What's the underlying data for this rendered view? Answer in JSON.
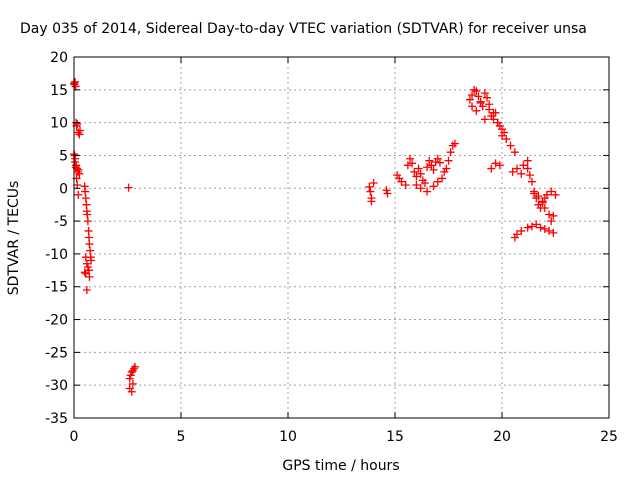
{
  "chart_data": {
    "type": "scatter",
    "title": "Day 035 of 2014, Sidereal Day-to-day VTEC variation (SDTVAR) for receiver unsa",
    "xlabel": "GPS time / hours",
    "ylabel": "SDTVAR / TECUs",
    "xlim": [
      0,
      25
    ],
    "ylim": [
      -35,
      20
    ],
    "xticks": [
      0,
      5,
      10,
      15,
      20,
      25
    ],
    "yticks": [
      20,
      15,
      10,
      5,
      0,
      -5,
      -10,
      -15,
      -20,
      -25,
      -30,
      -35
    ],
    "grid": true,
    "marker": "+",
    "colors": {
      "points": "#ff0000",
      "axes": "#000000",
      "grid": "#a0a0a0"
    },
    "series": [
      {
        "name": "SDTVAR",
        "x": [
          0.0,
          0.02,
          0.05,
          0.08,
          0.1,
          0.12,
          0.15,
          0.2,
          0.25,
          0.28,
          0.0,
          0.03,
          0.06,
          0.1,
          0.14,
          0.18,
          0.22,
          0.25,
          0.05,
          0.08,
          0.12,
          0.15,
          0.2,
          0.5,
          0.52,
          0.55,
          0.58,
          0.6,
          0.62,
          0.65,
          0.68,
          0.7,
          0.72,
          0.75,
          0.78,
          0.8,
          0.55,
          0.6,
          0.65,
          0.7,
          0.72,
          0.5,
          0.55,
          0.6,
          2.55,
          2.6,
          2.65,
          2.7,
          2.75,
          2.8,
          2.85,
          2.6,
          2.7,
          2.75,
          13.8,
          13.85,
          13.9,
          14.0,
          13.9,
          14.6,
          14.65,
          15.1,
          15.2,
          15.3,
          15.5,
          15.6,
          15.7,
          15.8,
          15.9,
          16.0,
          16.1,
          16.2,
          16.3,
          16.4,
          16.5,
          16.6,
          16.7,
          16.8,
          16.9,
          17.0,
          17.1,
          17.2,
          17.3,
          17.4,
          17.5,
          17.6,
          17.7,
          17.8,
          16.0,
          16.2,
          16.5,
          16.8,
          17.0,
          18.5,
          18.6,
          18.7,
          18.8,
          18.9,
          19.0,
          19.1,
          19.2,
          19.3,
          19.4,
          19.5,
          19.6,
          19.7,
          19.8,
          19.9,
          20.0,
          20.1,
          18.6,
          18.8,
          19.0,
          19.2,
          19.4,
          19.6,
          19.8,
          20.0,
          20.2,
          20.4,
          20.6,
          19.5,
          19.7,
          19.9,
          20.5,
          20.7,
          20.9,
          21.0,
          21.2,
          21.2,
          21.3,
          21.4,
          21.5,
          21.6,
          21.7,
          21.8,
          21.9,
          22.0,
          22.1,
          21.5,
          21.7,
          21.9,
          22.0,
          22.2,
          22.3,
          22.4,
          22.5,
          22.3,
          20.6,
          20.7,
          20.9,
          21.2,
          21.4,
          21.6,
          21.8,
          22.0,
          22.2,
          22.4
        ],
        "y": [
          16.0,
          15.8,
          16.2,
          15.5,
          10.0,
          9.5,
          9.8,
          8.5,
          8.2,
          8.8,
          5.2,
          5.0,
          4.5,
          3.5,
          3.0,
          2.5,
          2.8,
          2.2,
          4.0,
          3.2,
          1.5,
          0.5,
          -1.0,
          0.3,
          -0.5,
          -1.5,
          -2.5,
          -3.5,
          -4.0,
          -5.0,
          -6.5,
          -7.5,
          -8.5,
          -9.5,
          -10.5,
          -11.0,
          -10.5,
          -11.5,
          -12.0,
          -12.5,
          -13.5,
          -12.8,
          -13.0,
          -15.5,
          0.1,
          -29.0,
          -28.5,
          -28.0,
          -27.8,
          -27.5,
          -27.2,
          -30.5,
          -31.0,
          -29.8,
          0.2,
          -0.5,
          -1.5,
          0.8,
          -2.0,
          -0.3,
          -0.8,
          2.0,
          1.5,
          1.0,
          0.5,
          3.5,
          4.5,
          3.8,
          2.5,
          1.8,
          3.0,
          2.2,
          1.2,
          0.8,
          3.2,
          4.2,
          3.5,
          2.8,
          4.0,
          4.5,
          3.9,
          1.5,
          2.5,
          3.0,
          4.2,
          5.5,
          6.5,
          6.8,
          0.5,
          0.0,
          -0.5,
          0.3,
          1.0,
          13.5,
          14.2,
          15.0,
          14.8,
          14.0,
          13.2,
          12.5,
          14.5,
          13.8,
          12.0,
          11.0,
          10.5,
          11.5,
          10.0,
          9.5,
          9.0,
          8.5,
          12.5,
          11.8,
          13.0,
          10.5,
          12.8,
          11.5,
          10.0,
          8.0,
          7.5,
          6.5,
          5.5,
          3.0,
          3.8,
          3.5,
          2.5,
          3.0,
          2.2,
          3.5,
          4.2,
          3.0,
          2.0,
          1.0,
          -0.5,
          -1.5,
          -2.5,
          -3.0,
          -2.0,
          -1.5,
          -1.0,
          -0.8,
          -1.2,
          -2.2,
          -3.0,
          -4.0,
          -5.0,
          -4.2,
          -1.0,
          -0.5,
          -7.5,
          -7.0,
          -6.5,
          -6.0,
          -5.8,
          -5.5,
          -6.0,
          -6.2,
          -6.5,
          -6.8
        ]
      }
    ]
  }
}
